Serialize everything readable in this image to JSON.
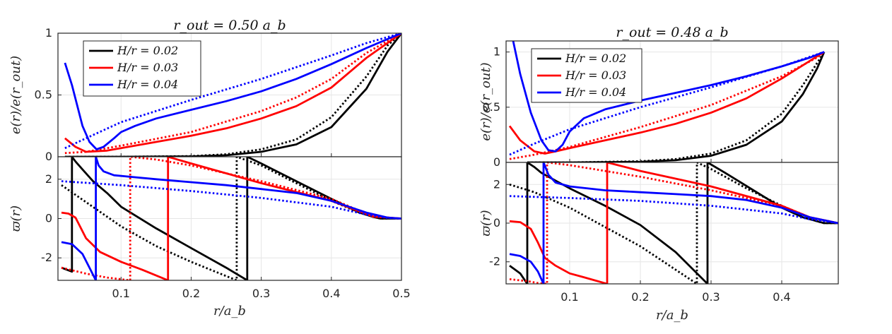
{
  "chart_data": [
    {
      "type": "line",
      "title": "r_out = 0.50 a_b",
      "xlabel": "r/a_b",
      "xlim": [
        0.01,
        0.5
      ],
      "xticks": [
        "0.1",
        "0.2",
        "0.3",
        "0.4",
        "0.5"
      ],
      "legend": {
        "placement": "top-left",
        "entries": [
          "H/r = 0.02",
          "H/r = 0.03",
          "H/r = 0.04"
        ]
      },
      "panels": [
        {
          "ylabel": "e(r)/e(r_out)",
          "ylim": [
            0,
            1
          ],
          "yticks": [
            "0",
            "0.5",
            "1"
          ],
          "series": [
            {
              "name": "H/r = 0.02",
              "color": "#000000",
              "style": "solid",
              "x": [
                0.02,
                0.1,
                0.2,
                0.25,
                0.3,
                0.35,
                0.4,
                0.45,
                0.48,
                0.5
              ],
              "y": [
                0,
                0,
                0.003,
                0.012,
                0.04,
                0.1,
                0.24,
                0.55,
                0.85,
                1.0
              ]
            },
            {
              "name": "H/r = 0.02",
              "color": "#000000",
              "style": "dotted",
              "x": [
                0.02,
                0.1,
                0.2,
                0.25,
                0.3,
                0.35,
                0.4,
                0.45,
                0.48,
                0.5
              ],
              "y": [
                0,
                0,
                0.005,
                0.02,
                0.06,
                0.14,
                0.32,
                0.65,
                0.9,
                1.0
              ]
            },
            {
              "name": "H/r = 0.03",
              "color": "#ff0000",
              "style": "solid",
              "x": [
                0.02,
                0.035,
                0.05,
                0.08,
                0.1,
                0.15,
                0.2,
                0.25,
                0.3,
                0.35,
                0.4,
                0.45,
                0.5
              ],
              "y": [
                0.15,
                0.08,
                0.04,
                0.05,
                0.07,
                0.12,
                0.17,
                0.23,
                0.31,
                0.41,
                0.56,
                0.8,
                1.0
              ]
            },
            {
              "name": "H/r = 0.03",
              "color": "#ff0000",
              "style": "dotted",
              "x": [
                0.02,
                0.05,
                0.1,
                0.2,
                0.3,
                0.35,
                0.4,
                0.45,
                0.5
              ],
              "y": [
                0.03,
                0.04,
                0.09,
                0.2,
                0.37,
                0.48,
                0.63,
                0.84,
                1.0
              ]
            },
            {
              "name": "H/r = 0.04",
              "color": "#0000ff",
              "style": "solid",
              "x": [
                0.02,
                0.03,
                0.045,
                0.055,
                0.065,
                0.075,
                0.09,
                0.1,
                0.12,
                0.15,
                0.2,
                0.25,
                0.3,
                0.35,
                0.4,
                0.45,
                0.5
              ],
              "y": [
                0.76,
                0.58,
                0.25,
                0.12,
                0.06,
                0.08,
                0.15,
                0.2,
                0.25,
                0.31,
                0.38,
                0.45,
                0.53,
                0.63,
                0.75,
                0.88,
                1.0
              ]
            },
            {
              "name": "H/r = 0.04",
              "color": "#0000ff",
              "style": "dotted",
              "x": [
                0.02,
                0.05,
                0.1,
                0.2,
                0.3,
                0.4,
                0.45,
                0.5
              ],
              "y": [
                0.07,
                0.15,
                0.28,
                0.46,
                0.63,
                0.82,
                0.92,
                1.0
              ]
            }
          ]
        },
        {
          "ylabel": "ϖ(r)",
          "ylim": [
            -3.1416,
            3.1416
          ],
          "yticks": [
            "-2",
            "0",
            "2"
          ],
          "series": [
            {
              "name": "H/r = 0.02",
              "color": "#000000",
              "style": "solid",
              "x": [
                0.015,
                0.03,
                0.03,
                0.035,
                0.045,
                0.06,
                0.08,
                0.1,
                0.15,
                0.2,
                0.25,
                0.28,
                0.28,
                0.3,
                0.35,
                0.4,
                0.44,
                0.46,
                0.47,
                0.5
              ],
              "y": [
                -2.5,
                -2.7,
                3.14,
                2.9,
                2.5,
                1.9,
                1.3,
                0.6,
                -0.5,
                -1.5,
                -2.5,
                -3.14,
                3.14,
                2.8,
                1.9,
                1.0,
                0.3,
                0.08,
                0,
                0
              ]
            },
            {
              "name": "H/r = 0.02",
              "color": "#000000",
              "style": "dotted",
              "x": [
                0.015,
                0.1,
                0.15,
                0.2,
                0.265,
                0.265,
                0.3,
                0.35,
                0.4,
                0.44,
                0.47,
                0.5
              ],
              "y": [
                1.7,
                -0.4,
                -1.4,
                -2.2,
                -3.14,
                3.14,
                2.7,
                1.8,
                0.9,
                0.3,
                0,
                0
              ]
            },
            {
              "name": "H/r = 0.03",
              "color": "#ff0000",
              "style": "solid",
              "x": [
                0.015,
                0.025,
                0.035,
                0.04,
                0.05,
                0.07,
                0.1,
                0.13,
                0.167,
                0.167,
                0.2,
                0.3,
                0.4,
                0.46,
                0.5
              ],
              "y": [
                0.3,
                0.25,
                0.05,
                -0.3,
                -1.0,
                -1.7,
                -2.2,
                -2.6,
                -3.14,
                3.14,
                2.8,
                1.8,
                0.9,
                0.1,
                0
              ]
            },
            {
              "name": "H/r = 0.03",
              "color": "#ff0000",
              "style": "dotted",
              "x": [
                0.015,
                0.05,
                0.08,
                0.113,
                0.113,
                0.15,
                0.2,
                0.3,
                0.4,
                0.46,
                0.5
              ],
              "y": [
                -2.5,
                -2.8,
                -3.0,
                -3.14,
                3.14,
                3.0,
                2.7,
                1.9,
                1.0,
                0.1,
                0
              ]
            },
            {
              "name": "H/r = 0.04",
              "color": "#0000ff",
              "style": "solid",
              "x": [
                0.015,
                0.03,
                0.045,
                0.055,
                0.064,
                0.064,
                0.068,
                0.075,
                0.09,
                0.12,
                0.15,
                0.2,
                0.25,
                0.3,
                0.35,
                0.4,
                0.45,
                0.48,
                0.5
              ],
              "y": [
                -1.2,
                -1.3,
                -1.8,
                -2.5,
                -3.14,
                3.14,
                2.7,
                2.4,
                2.2,
                2.1,
                2.0,
                1.85,
                1.7,
                1.5,
                1.3,
                0.9,
                0.3,
                0.05,
                0
              ]
            },
            {
              "name": "H/r = 0.04",
              "color": "#0000ff",
              "style": "dotted",
              "x": [
                0.015,
                0.1,
                0.2,
                0.3,
                0.4,
                0.45,
                0.48,
                0.5
              ],
              "y": [
                1.9,
                1.7,
                1.4,
                1.05,
                0.6,
                0.2,
                0.03,
                0
              ]
            }
          ]
        }
      ]
    },
    {
      "type": "line",
      "title": "r_out = 0.48 a_b",
      "xlabel": "r/a_b",
      "xlim": [
        0.01,
        0.48
      ],
      "xticks": [
        "0.1",
        "0.2",
        "0.3",
        "0.4"
      ],
      "legend": {
        "placement": "top-left",
        "entries": [
          "H/r = 0.02",
          "H/r = 0.03",
          "H/r = 0.04"
        ]
      },
      "panels": [
        {
          "ylabel": "e(r)/e(r_out)",
          "ylim": [
            0,
            1.1
          ],
          "yticks": [
            "0",
            "0.5",
            "1"
          ],
          "series": [
            {
              "name": "H/r = 0.02",
              "color": "#000000",
              "style": "solid",
              "x": [
                0.04,
                0.1,
                0.2,
                0.25,
                0.3,
                0.35,
                0.4,
                0.43,
                0.45,
                0.46
              ],
              "y": [
                0,
                0,
                0.006,
                0.02,
                0.06,
                0.16,
                0.37,
                0.62,
                0.85,
                1.0
              ]
            },
            {
              "name": "H/r = 0.02",
              "color": "#000000",
              "style": "dotted",
              "x": [
                0.04,
                0.1,
                0.2,
                0.25,
                0.3,
                0.35,
                0.4,
                0.43,
                0.45,
                0.46
              ],
              "y": [
                0,
                0,
                0.01,
                0.03,
                0.08,
                0.2,
                0.44,
                0.7,
                0.9,
                1.0
              ]
            },
            {
              "name": "H/r = 0.03",
              "color": "#ff0000",
              "style": "solid",
              "x": [
                0.015,
                0.03,
                0.05,
                0.065,
                0.08,
                0.1,
                0.15,
                0.2,
                0.25,
                0.3,
                0.35,
                0.4,
                0.44,
                0.46
              ],
              "y": [
                0.33,
                0.2,
                0.1,
                0.08,
                0.1,
                0.13,
                0.2,
                0.27,
                0.35,
                0.45,
                0.58,
                0.76,
                0.92,
                1.0
              ]
            },
            {
              "name": "H/r = 0.03",
              "color": "#ff0000",
              "style": "dotted",
              "x": [
                0.015,
                0.05,
                0.1,
                0.2,
                0.3,
                0.4,
                0.45,
                0.46
              ],
              "y": [
                0.03,
                0.07,
                0.14,
                0.32,
                0.52,
                0.78,
                0.95,
                1.0
              ]
            },
            {
              "name": "H/r = 0.04",
              "color": "#0000ff",
              "style": "solid",
              "x": [
                0.02,
                0.03,
                0.045,
                0.06,
                0.07,
                0.08,
                0.09,
                0.1,
                0.12,
                0.15,
                0.2,
                0.25,
                0.3,
                0.35,
                0.4,
                0.44,
                0.46
              ],
              "y": [
                1.1,
                0.8,
                0.45,
                0.2,
                0.11,
                0.1,
                0.16,
                0.28,
                0.4,
                0.48,
                0.56,
                0.63,
                0.7,
                0.78,
                0.87,
                0.95,
                1.0
              ]
            },
            {
              "name": "H/r = 0.04",
              "color": "#0000ff",
              "style": "dotted",
              "x": [
                0.015,
                0.05,
                0.1,
                0.2,
                0.3,
                0.4,
                0.46
              ],
              "y": [
                0.07,
                0.17,
                0.3,
                0.5,
                0.68,
                0.87,
                1.0
              ]
            }
          ]
        },
        {
          "ylabel": "ϖ(r)",
          "ylim": [
            -3.1416,
            3.1416
          ],
          "yticks": [
            "-2",
            "0",
            "2"
          ],
          "series": [
            {
              "name": "H/r = 0.02",
              "color": "#000000",
              "style": "solid",
              "x": [
                0.015,
                0.03,
                0.04,
                0.04,
                0.05,
                0.06,
                0.08,
                0.1,
                0.15,
                0.2,
                0.25,
                0.295,
                0.295,
                0.32,
                0.36,
                0.4,
                0.43,
                0.46,
                0.48
              ],
              "y": [
                -2.2,
                -2.6,
                -3.14,
                3.14,
                2.9,
                2.6,
                2.2,
                1.8,
                0.9,
                -0.1,
                -1.5,
                -3.14,
                3.14,
                2.6,
                1.7,
                0.8,
                0.3,
                0,
                0
              ]
            },
            {
              "name": "H/r = 0.02",
              "color": "#000000",
              "style": "dotted",
              "x": [
                0.015,
                0.05,
                0.1,
                0.15,
                0.2,
                0.28,
                0.28,
                0.3,
                0.35,
                0.4,
                0.43,
                0.46,
                0.48
              ],
              "y": [
                2.0,
                1.6,
                0.8,
                -0.2,
                -1.2,
                -3.14,
                3.14,
                2.8,
                1.8,
                0.9,
                0.3,
                0,
                0
              ]
            },
            {
              "name": "H/r = 0.03",
              "color": "#ff0000",
              "style": "solid",
              "x": [
                0.015,
                0.03,
                0.045,
                0.055,
                0.065,
                0.08,
                0.1,
                0.12,
                0.153,
                0.153,
                0.2,
                0.3,
                0.4,
                0.44,
                0.48
              ],
              "y": [
                0.1,
                0.05,
                -0.3,
                -1.0,
                -1.8,
                -2.2,
                -2.6,
                -2.8,
                -3.14,
                3.14,
                2.7,
                1.9,
                0.9,
                0.3,
                0
              ]
            },
            {
              "name": "H/r = 0.03",
              "color": "#ff0000",
              "style": "dotted",
              "x": [
                0.015,
                0.04,
                0.055,
                0.068,
                0.068,
                0.1,
                0.2,
                0.3,
                0.4,
                0.44,
                0.48
              ],
              "y": [
                -2.9,
                -3.0,
                -3.1,
                -3.14,
                3.14,
                3.0,
                2.4,
                1.7,
                0.9,
                0.3,
                0
              ]
            },
            {
              "name": "H/r = 0.04",
              "color": "#0000ff",
              "style": "solid",
              "x": [
                0.015,
                0.03,
                0.045,
                0.055,
                0.063,
                0.063,
                0.07,
                0.08,
                0.1,
                0.15,
                0.2,
                0.25,
                0.3,
                0.35,
                0.4,
                0.44,
                0.48
              ],
              "y": [
                -1.6,
                -1.7,
                -2.0,
                -2.5,
                -3.14,
                3.14,
                2.5,
                2.1,
                1.9,
                1.7,
                1.6,
                1.5,
                1.4,
                1.2,
                0.8,
                0.3,
                0
              ]
            },
            {
              "name": "H/r = 0.04",
              "color": "#0000ff",
              "style": "dotted",
              "x": [
                0.015,
                0.1,
                0.2,
                0.3,
                0.4,
                0.44,
                0.48
              ],
              "y": [
                1.4,
                1.3,
                1.15,
                0.9,
                0.5,
                0.2,
                0
              ]
            }
          ]
        }
      ]
    }
  ]
}
